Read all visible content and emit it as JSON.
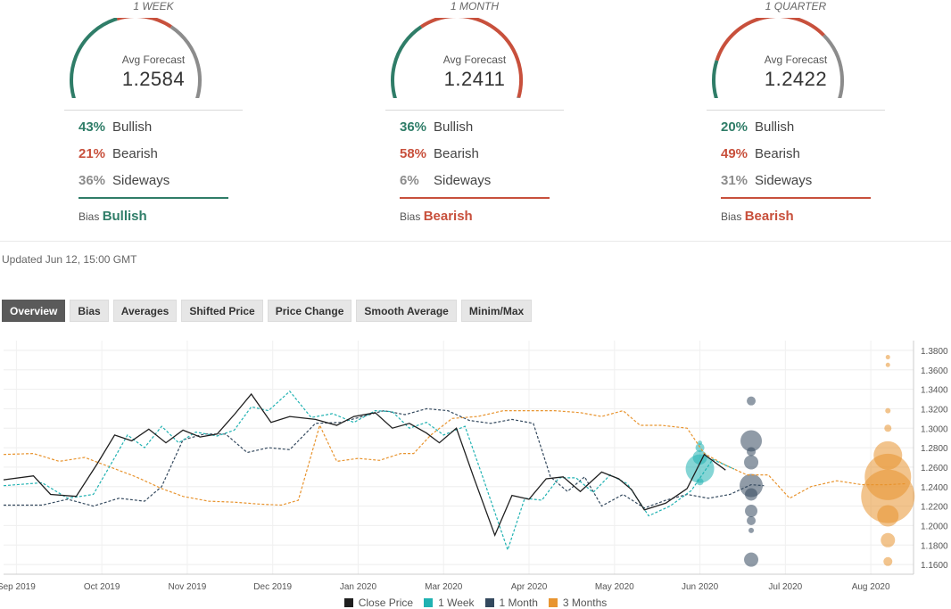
{
  "panels": [
    {
      "title": "1 WEEK",
      "avg_label": "Avg Forecast",
      "avg_value": "1.2584",
      "bullish_pct": "43%",
      "bullish_label": "Bullish",
      "bearish_pct": "21%",
      "bearish_label": "Bearish",
      "sideways_pct": "36%",
      "sideways_label": "Sideways",
      "bias_label": "Bias",
      "bias_value": "Bullish",
      "gauge": [
        0.43,
        0.21,
        0.36
      ],
      "bias_color": "#2f7d68"
    },
    {
      "title": "1 MONTH",
      "avg_label": "Avg Forecast",
      "avg_value": "1.2411",
      "bullish_pct": "36%",
      "bullish_label": "Bullish",
      "bearish_pct": "58%",
      "bearish_label": "Bearish",
      "sideways_pct": "6%",
      "sideways_label": "Sideways",
      "bias_label": "Bias",
      "bias_value": "Bearish",
      "gauge": [
        0.36,
        0.58,
        0.06
      ],
      "bias_color": "#c8503c"
    },
    {
      "title": "1 QUARTER",
      "avg_label": "Avg Forecast",
      "avg_value": "1.2422",
      "bullish_pct": "20%",
      "bullish_label": "Bullish",
      "bearish_pct": "49%",
      "bearish_label": "Bearish",
      "sideways_pct": "31%",
      "sideways_label": "Sideways",
      "bias_label": "Bias",
      "bias_value": "Bearish",
      "gauge": [
        0.2,
        0.49,
        0.31
      ],
      "bias_color": "#c8503c"
    }
  ],
  "colors": {
    "bullish": "#2f7d68",
    "bearish": "#c8503c",
    "sideways": "#8c8c8c"
  },
  "updated": "Updated Jun 12, 15:00 GMT",
  "tabs": [
    "Overview",
    "Bias",
    "Averages",
    "Shifted Price",
    "Price Change",
    "Smooth Average",
    "Minim/Max"
  ],
  "chart_data": {
    "type": "line",
    "x_ticks": [
      {
        "label": "Sep 2019",
        "t": 0
      },
      {
        "label": "Oct 2019",
        "t": 1
      },
      {
        "label": "Nov 2019",
        "t": 2
      },
      {
        "label": "Dec 2019",
        "t": 3
      },
      {
        "label": "Jan 2020",
        "t": 4
      },
      {
        "label": "Mar 2020",
        "t": 5
      },
      {
        "label": "Apr 2020",
        "t": 6
      },
      {
        "label": "May 2020",
        "t": 7
      },
      {
        "label": "Jun 2020",
        "t": 8
      },
      {
        "label": "Jul 2020",
        "t": 9
      },
      {
        "label": "Aug 2020",
        "t": 10
      }
    ],
    "y_ticks": [
      "1.1600",
      "1.1800",
      "1.2000",
      "1.2200",
      "1.2400",
      "1.2600",
      "1.2800",
      "1.3000",
      "1.3200",
      "1.3400",
      "1.3600",
      "1.3800"
    ],
    "ylim": [
      1.15,
      1.39
    ],
    "xlim": [
      -0.15,
      10.5
    ],
    "series": [
      {
        "name": "Close Price",
        "color": "#1f1f1f",
        "dashed": false,
        "points": [
          [
            -0.15,
            1.247
          ],
          [
            0.2,
            1.251
          ],
          [
            0.4,
            1.232
          ],
          [
            0.7,
            1.23
          ],
          [
            0.95,
            1.264
          ],
          [
            1.15,
            1.293
          ],
          [
            1.35,
            1.287
          ],
          [
            1.55,
            1.299
          ],
          [
            1.75,
            1.285
          ],
          [
            1.95,
            1.298
          ],
          [
            2.15,
            1.291
          ],
          [
            2.35,
            1.294
          ],
          [
            2.55,
            1.314
          ],
          [
            2.75,
            1.335
          ],
          [
            2.98,
            1.306
          ],
          [
            3.2,
            1.312
          ],
          [
            3.5,
            1.309
          ],
          [
            3.75,
            1.303
          ],
          [
            3.95,
            1.312
          ],
          [
            4.2,
            1.316
          ],
          [
            4.4,
            1.3
          ],
          [
            4.6,
            1.305
          ],
          [
            4.8,
            1.295
          ],
          [
            4.95,
            1.285
          ],
          [
            5.15,
            1.3
          ],
          [
            5.35,
            1.25
          ],
          [
            5.6,
            1.19
          ],
          [
            5.8,
            1.231
          ],
          [
            6.0,
            1.227
          ],
          [
            6.2,
            1.248
          ],
          [
            6.4,
            1.25
          ],
          [
            6.6,
            1.235
          ],
          [
            6.85,
            1.255
          ],
          [
            7.05,
            1.248
          ],
          [
            7.2,
            1.237
          ],
          [
            7.35,
            1.216
          ],
          [
            7.6,
            1.223
          ],
          [
            7.85,
            1.238
          ],
          [
            8.05,
            1.273
          ],
          [
            8.3,
            1.257
          ]
        ]
      },
      {
        "name": "1 Week",
        "color": "#20b2b2",
        "dashed": true,
        "points": [
          [
            -0.15,
            1.241
          ],
          [
            0.3,
            1.244
          ],
          [
            0.6,
            1.228
          ],
          [
            0.9,
            1.232
          ],
          [
            1.1,
            1.262
          ],
          [
            1.3,
            1.293
          ],
          [
            1.5,
            1.28
          ],
          [
            1.7,
            1.302
          ],
          [
            1.9,
            1.285
          ],
          [
            2.1,
            1.296
          ],
          [
            2.35,
            1.292
          ],
          [
            2.55,
            1.298
          ],
          [
            2.75,
            1.322
          ],
          [
            2.95,
            1.318
          ],
          [
            3.2,
            1.338
          ],
          [
            3.45,
            1.311
          ],
          [
            3.7,
            1.315
          ],
          [
            3.95,
            1.306
          ],
          [
            4.2,
            1.318
          ],
          [
            4.4,
            1.317
          ],
          [
            4.6,
            1.3
          ],
          [
            4.8,
            1.306
          ],
          [
            5.0,
            1.293
          ],
          [
            5.25,
            1.302
          ],
          [
            5.45,
            1.252
          ],
          [
            5.75,
            1.175
          ],
          [
            5.95,
            1.228
          ],
          [
            6.15,
            1.226
          ],
          [
            6.35,
            1.249
          ],
          [
            6.55,
            1.249
          ],
          [
            6.75,
            1.234
          ],
          [
            6.95,
            1.252
          ],
          [
            7.15,
            1.243
          ],
          [
            7.4,
            1.21
          ],
          [
            7.65,
            1.22
          ],
          [
            7.9,
            1.236
          ],
          [
            8.15,
            1.268
          ],
          [
            8.4,
            1.258
          ]
        ]
      },
      {
        "name": "1 Month",
        "color": "#34495e",
        "dashed": true,
        "points": [
          [
            -0.15,
            1.221
          ],
          [
            0.3,
            1.221
          ],
          [
            0.6,
            1.227
          ],
          [
            0.9,
            1.22
          ],
          [
            1.2,
            1.228
          ],
          [
            1.5,
            1.225
          ],
          [
            1.7,
            1.24
          ],
          [
            1.95,
            1.288
          ],
          [
            2.2,
            1.294
          ],
          [
            2.45,
            1.294
          ],
          [
            2.7,
            1.275
          ],
          [
            2.95,
            1.28
          ],
          [
            3.2,
            1.278
          ],
          [
            3.5,
            1.305
          ],
          [
            3.8,
            1.306
          ],
          [
            4.05,
            1.312
          ],
          [
            4.3,
            1.318
          ],
          [
            4.55,
            1.314
          ],
          [
            4.8,
            1.32
          ],
          [
            5.05,
            1.318
          ],
          [
            5.3,
            1.308
          ],
          [
            5.55,
            1.305
          ],
          [
            5.8,
            1.309
          ],
          [
            6.05,
            1.305
          ],
          [
            6.25,
            1.25
          ],
          [
            6.45,
            1.235
          ],
          [
            6.65,
            1.25
          ],
          [
            6.85,
            1.22
          ],
          [
            7.1,
            1.232
          ],
          [
            7.35,
            1.218
          ],
          [
            7.6,
            1.226
          ],
          [
            7.85,
            1.232
          ],
          [
            8.1,
            1.228
          ],
          [
            8.35,
            1.232
          ],
          [
            8.6,
            1.242
          ],
          [
            8.75,
            1.241
          ]
        ]
      },
      {
        "name": "3 Months",
        "color": "#e8942f",
        "dashed": true,
        "points": [
          [
            -0.15,
            1.273
          ],
          [
            0.2,
            1.274
          ],
          [
            0.5,
            1.266
          ],
          [
            0.8,
            1.27
          ],
          [
            1.1,
            1.26
          ],
          [
            1.4,
            1.25
          ],
          [
            1.7,
            1.238
          ],
          [
            1.95,
            1.23
          ],
          [
            2.25,
            1.225
          ],
          [
            2.55,
            1.224
          ],
          [
            2.85,
            1.222
          ],
          [
            3.1,
            1.221
          ],
          [
            3.3,
            1.226
          ],
          [
            3.55,
            1.303
          ],
          [
            3.75,
            1.266
          ],
          [
            4.0,
            1.269
          ],
          [
            4.25,
            1.267
          ],
          [
            4.5,
            1.274
          ],
          [
            4.65,
            1.274
          ],
          [
            4.85,
            1.293
          ],
          [
            5.1,
            1.31
          ],
          [
            5.4,
            1.312
          ],
          [
            5.7,
            1.318
          ],
          [
            6.0,
            1.318
          ],
          [
            6.3,
            1.318
          ],
          [
            6.6,
            1.316
          ],
          [
            6.85,
            1.312
          ],
          [
            7.1,
            1.318
          ],
          [
            7.3,
            1.303
          ],
          [
            7.55,
            1.303
          ],
          [
            7.85,
            1.3
          ],
          [
            8.05,
            1.274
          ],
          [
            8.3,
            1.262
          ],
          [
            8.55,
            1.252
          ],
          [
            8.8,
            1.252
          ],
          [
            9.05,
            1.228
          ],
          [
            9.3,
            1.24
          ],
          [
            9.6,
            1.246
          ],
          [
            9.9,
            1.242
          ],
          [
            10.2,
            1.242
          ],
          [
            10.4,
            1.243
          ]
        ]
      }
    ],
    "bubbles": [
      {
        "series": "1 Week",
        "color": "#20b2b2",
        "x": 8.0,
        "values": [
          [
            1.2584,
            16
          ],
          [
            1.27,
            8
          ],
          [
            1.28,
            5
          ],
          [
            1.245,
            4
          ],
          [
            1.285,
            2.5
          ]
        ]
      },
      {
        "series": "1 Month",
        "color": "#34495e",
        "x": 8.6,
        "values": [
          [
            1.287,
            12
          ],
          [
            1.2411,
            13
          ],
          [
            1.265,
            8
          ],
          [
            1.276,
            5
          ],
          [
            1.215,
            7
          ],
          [
            1.232,
            7
          ],
          [
            1.205,
            5
          ],
          [
            1.195,
            3
          ],
          [
            1.165,
            8
          ],
          [
            1.328,
            5
          ]
        ]
      },
      {
        "series": "3 Months",
        "color": "#e8942f",
        "x": 10.2,
        "values": [
          [
            1.23,
            30
          ],
          [
            1.25,
            26
          ],
          [
            1.272,
            16
          ],
          [
            1.21,
            12
          ],
          [
            1.185,
            8
          ],
          [
            1.163,
            5
          ],
          [
            1.3,
            4
          ],
          [
            1.318,
            3
          ],
          [
            1.365,
            2.5
          ],
          [
            1.373,
            2.5
          ]
        ]
      }
    ],
    "legend": [
      {
        "name": "Close Price",
        "color": "#1f1f1f"
      },
      {
        "name": "1 Week",
        "color": "#20b2b2"
      },
      {
        "name": "1 Month",
        "color": "#34495e"
      },
      {
        "name": "3 Months",
        "color": "#e8942f"
      }
    ]
  }
}
